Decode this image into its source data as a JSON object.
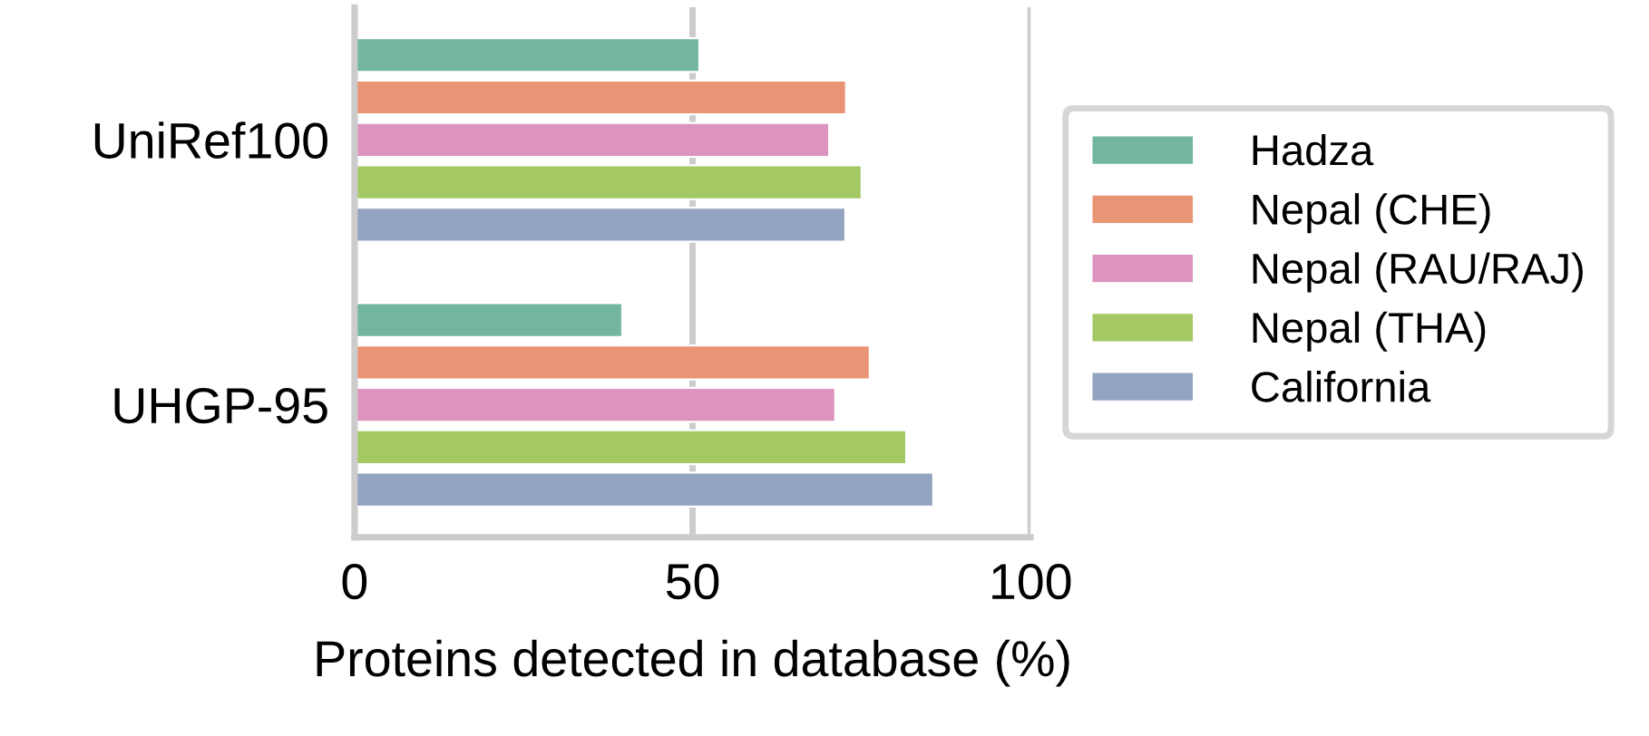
{
  "chart_data": {
    "type": "bar",
    "orientation": "horizontal",
    "xlabel": "Proteins detected in database (%)",
    "categories": [
      "UniRef100",
      "UHGP-95"
    ],
    "series": [
      {
        "name": "Hadza",
        "color": "#73b6a0",
        "values": [
          51,
          39.6
        ]
      },
      {
        "name": "Nepal (CHE)",
        "color": "#e99575",
        "values": [
          72.7,
          76.2
        ]
      },
      {
        "name": "Nepal (RAU/RAJ)",
        "color": "#dc94be",
        "values": [
          70.2,
          71.1
        ]
      },
      {
        "name": "Nepal (THA)",
        "color": "#a3c864",
        "values": [
          75,
          81.6
        ]
      },
      {
        "name": "California",
        "color": "#93a3c2",
        "values": [
          72.6,
          85.6
        ]
      }
    ],
    "xlim": [
      0,
      100
    ],
    "xticks": [
      0,
      50,
      100
    ],
    "grid": "x",
    "legend": "right"
  }
}
